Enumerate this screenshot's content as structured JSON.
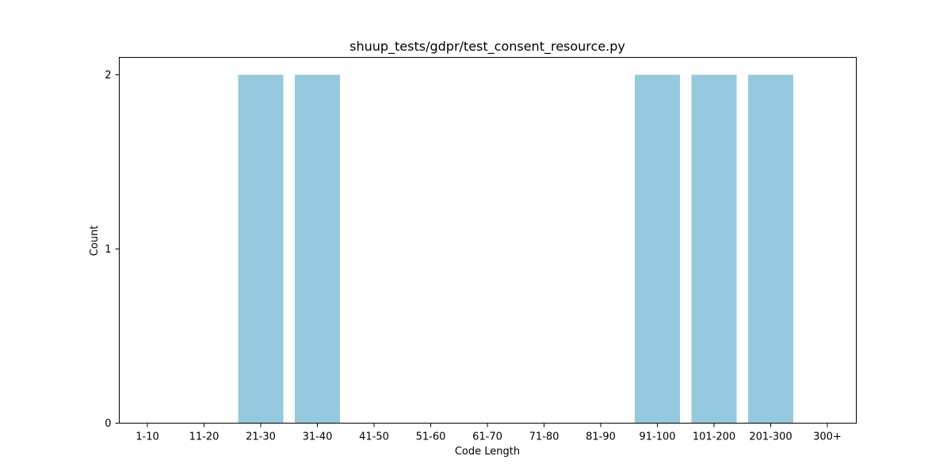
{
  "chart_data": {
    "type": "bar",
    "title": "shuup_tests/gdpr/test_consent_resource.py",
    "xlabel": "Code Length",
    "ylabel": "Count",
    "categories": [
      "1-10",
      "11-20",
      "21-30",
      "31-40",
      "41-50",
      "51-60",
      "61-70",
      "71-80",
      "81-90",
      "91-100",
      "101-200",
      "201-300",
      "300+"
    ],
    "values": [
      0,
      0,
      2,
      2,
      0,
      0,
      0,
      0,
      0,
      2,
      2,
      2,
      0
    ],
    "yticks": [
      0,
      1,
      2
    ],
    "ylim": [
      0,
      2.1
    ],
    "bar_color": "#96c9dd",
    "grid": false,
    "legend": "none"
  }
}
